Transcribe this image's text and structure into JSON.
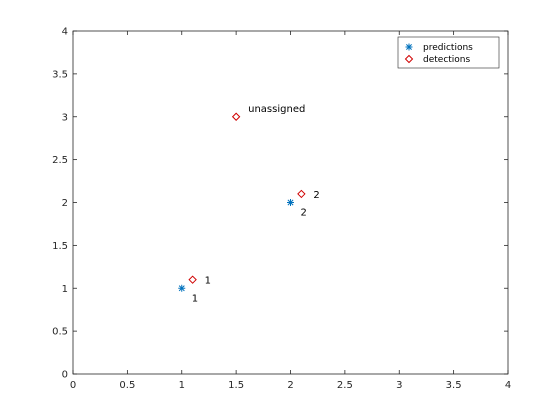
{
  "chart_data": {
    "type": "scatter",
    "title": "",
    "xlabel": "",
    "ylabel": "",
    "xlim": [
      0,
      4
    ],
    "ylim": [
      0,
      4
    ],
    "xticks": [
      "0",
      "0.5",
      "1",
      "1.5",
      "2",
      "2.5",
      "3",
      "3.5",
      "4"
    ],
    "yticks": [
      "0",
      "0.5",
      "1",
      "1.5",
      "2",
      "2.5",
      "3",
      "3.5",
      "4"
    ],
    "grid": false,
    "legend_position": "top-right",
    "series": [
      {
        "name": "predictions",
        "marker": "star",
        "color": "#0072bd",
        "points": [
          {
            "x": 1,
            "y": 1
          },
          {
            "x": 2,
            "y": 2
          }
        ]
      },
      {
        "name": "detections",
        "marker": "diamond",
        "color": "#d00000",
        "points": [
          {
            "x": 1.1,
            "y": 1.1
          },
          {
            "x": 2.1,
            "y": 2.1
          },
          {
            "x": 1.5,
            "y": 3
          }
        ]
      }
    ],
    "annotations": [
      {
        "text": "1",
        "x": 1,
        "y": 1,
        "anchor": "below-right"
      },
      {
        "text": "1",
        "x": 1.1,
        "y": 1.1,
        "anchor": "right"
      },
      {
        "text": "2",
        "x": 2,
        "y": 2,
        "anchor": "below-right"
      },
      {
        "text": "2",
        "x": 2.1,
        "y": 2.1,
        "anchor": "right"
      },
      {
        "text": "unassigned",
        "x": 1.5,
        "y": 3,
        "anchor": "above-right"
      }
    ]
  }
}
